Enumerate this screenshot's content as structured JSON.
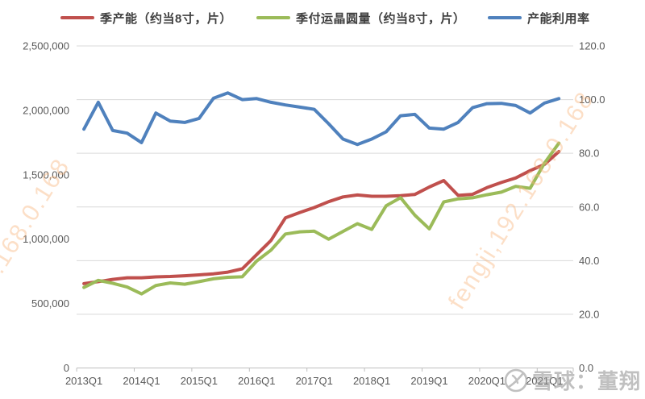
{
  "chart_data": {
    "type": "line",
    "title": "",
    "quarters": [
      "2013Q1",
      "2013Q2",
      "2013Q3",
      "2013Q4",
      "2014Q1",
      "2014Q2",
      "2014Q3",
      "2014Q4",
      "2015Q1",
      "2015Q2",
      "2015Q3",
      "2015Q4",
      "2016Q1",
      "2016Q2",
      "2016Q3",
      "2016Q4",
      "2017Q1",
      "2017Q2",
      "2017Q3",
      "2017Q4",
      "2018Q1",
      "2018Q2",
      "2018Q3",
      "2018Q4",
      "2019Q1",
      "2019Q2",
      "2019Q3",
      "2019Q4",
      "2020Q1",
      "2020Q2",
      "2020Q3",
      "2020Q4",
      "2021Q1",
      "2021Q2"
    ],
    "x_tick_labels": [
      "2013Q1",
      "2014Q1",
      "2015Q1",
      "2016Q1",
      "2017Q1",
      "2018Q1",
      "2019Q1",
      "2020Q1",
      "2021Q1"
    ],
    "series": [
      {
        "name": "季产能（约当8寸，片）",
        "axis": "left",
        "color": "#C0504D",
        "values": [
          655000,
          670000,
          688000,
          700000,
          700000,
          707000,
          710000,
          716000,
          723000,
          731000,
          744000,
          770000,
          880000,
          990000,
          1165000,
          1207000,
          1245000,
          1291000,
          1328000,
          1343000,
          1333000,
          1333000,
          1337000,
          1347000,
          1405000,
          1455000,
          1340000,
          1348000,
          1400000,
          1440000,
          1475000,
          1532000,
          1580000,
          1680000
        ]
      },
      {
        "name": "季付运晶圆量（约当8寸，片）",
        "axis": "left",
        "color": "#9BBB59",
        "values": [
          625000,
          680000,
          658000,
          628000,
          575000,
          640000,
          660000,
          650000,
          670000,
          692000,
          704000,
          708000,
          830000,
          915000,
          1040000,
          1057000,
          1062000,
          1000000,
          1060000,
          1120000,
          1076000,
          1260000,
          1322000,
          1186000,
          1080000,
          1289000,
          1313000,
          1321000,
          1345000,
          1365000,
          1410000,
          1395000,
          1590000,
          1745000
        ]
      },
      {
        "name": "产能利用率",
        "axis": "right",
        "color": "#4F81BD",
        "values": [
          89.0,
          99.0,
          88.5,
          87.5,
          84.0,
          95.0,
          92.0,
          91.5,
          93.0,
          100.5,
          102.5,
          100.0,
          100.4,
          99.0,
          98.0,
          97.2,
          96.4,
          91.0,
          85.3,
          83.3,
          85.3,
          88.0,
          94.0,
          94.5,
          89.4,
          89.0,
          91.5,
          97.0,
          98.5,
          98.6,
          97.8,
          95.0,
          98.7,
          100.4
        ]
      }
    ],
    "left_axis": {
      "min": 0,
      "max": 2500000,
      "step": 500000,
      "tick_labels": [
        "0",
        "500,000",
        "1,000,000",
        "1,500,000",
        "2,000,000",
        "2,500,000"
      ]
    },
    "right_axis": {
      "min": 0,
      "max": 120,
      "step": 20,
      "tick_labels": [
        "0.0",
        "20.0",
        "40.0",
        "60.0",
        "80.0",
        "100.0",
        "120.0"
      ]
    },
    "grid": "horizontal",
    "legend_position": "top",
    "colors": {
      "grid": "#D9D9D9",
      "axis": "#BFBFBF",
      "tick_text": "#595959"
    }
  },
  "watermark": {
    "band1": "fengji,192.168.0.168",
    "band2": "fengji,192.168.0.168"
  },
  "attribution": {
    "text": "雪球：董翔",
    "logo": "xueqiu-snowball-logo"
  }
}
